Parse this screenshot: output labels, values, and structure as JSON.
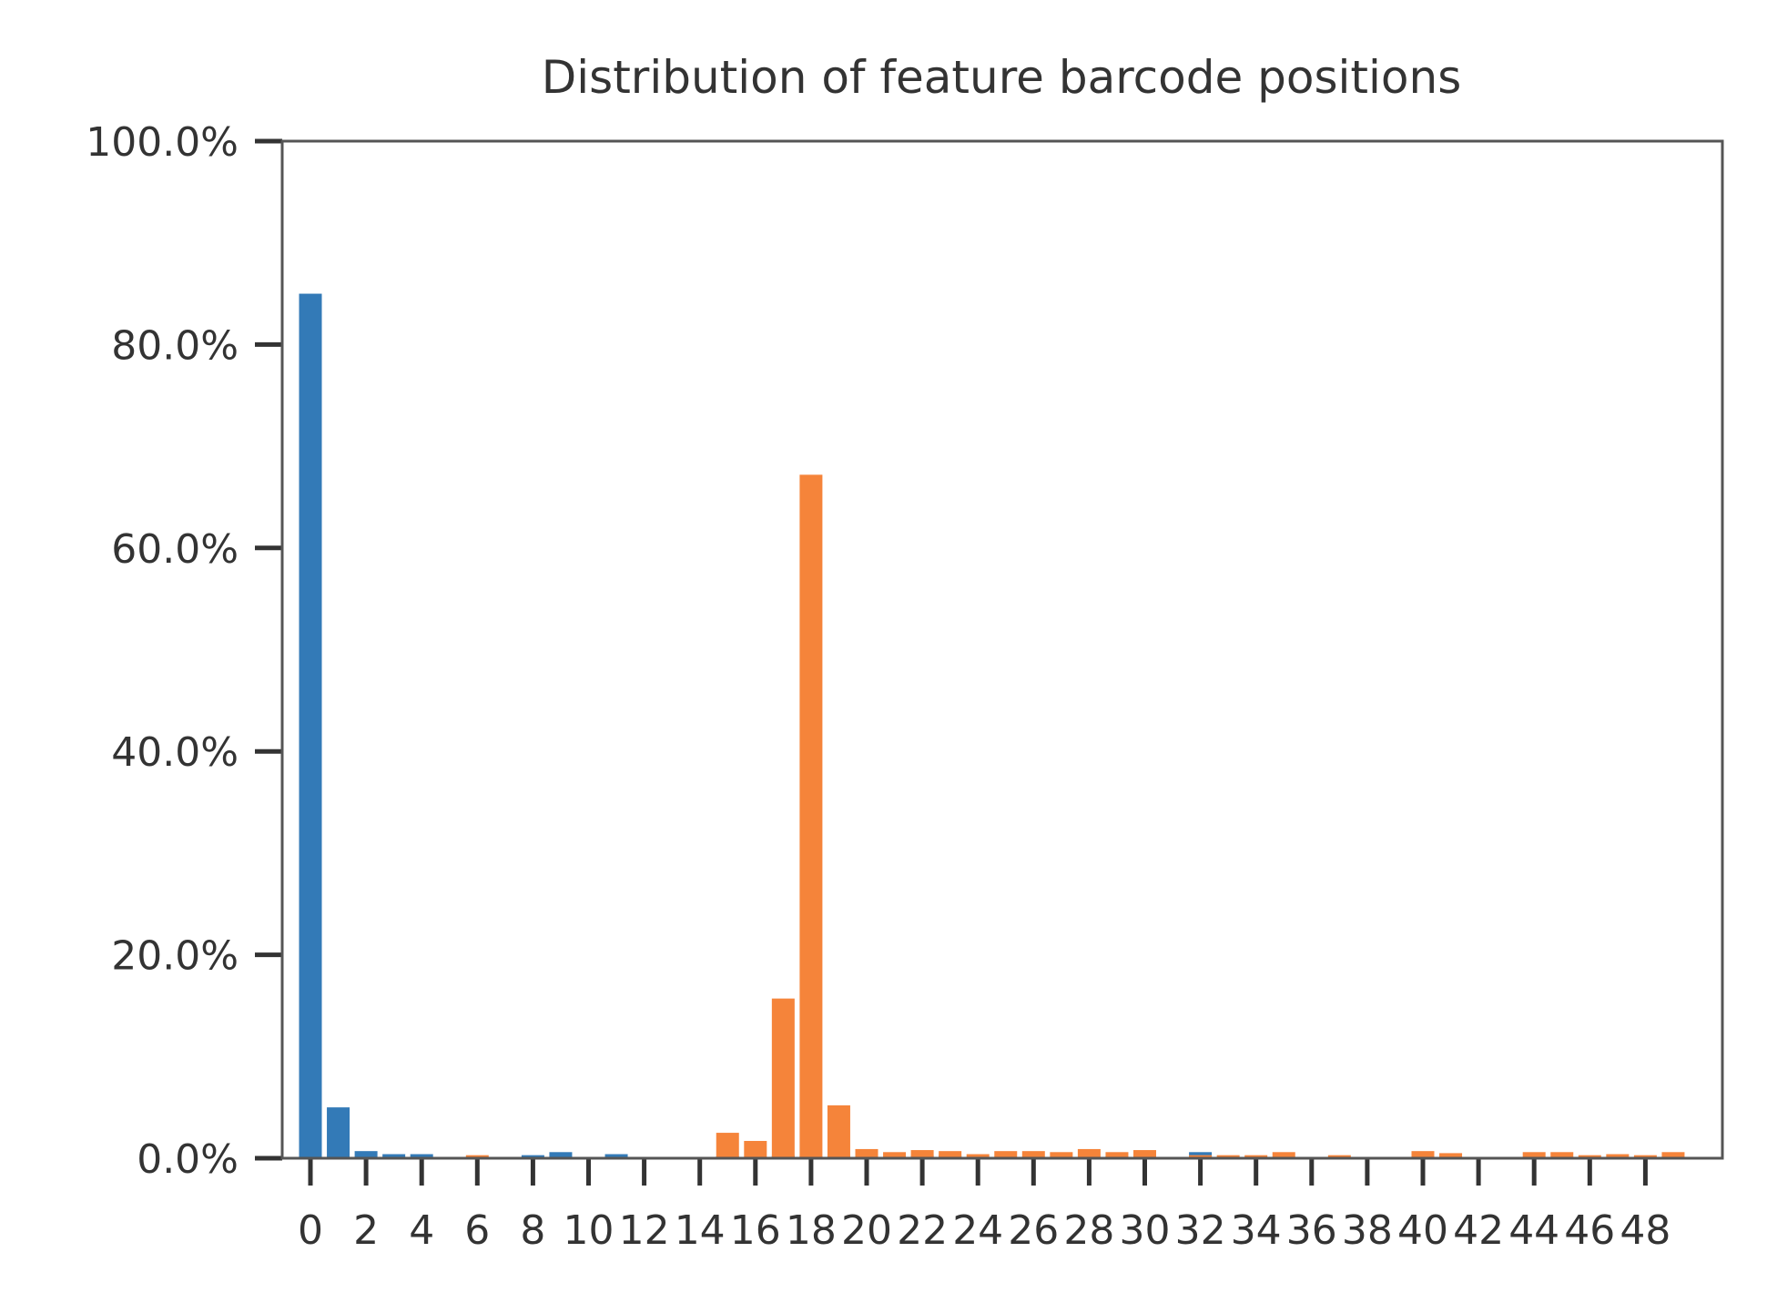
{
  "chart_data": {
    "type": "bar",
    "title": "Distribution of feature barcode positions",
    "xlabel": "",
    "ylabel": "",
    "ylim": [
      0,
      100
    ],
    "y_ticks": [
      0,
      20,
      40,
      60,
      80,
      100
    ],
    "y_tick_labels": [
      "0.0%",
      "20.0%",
      "40.0%",
      "60.0%",
      "80.0%",
      "100.0%"
    ],
    "x_ticks": [
      0,
      2,
      4,
      6,
      8,
      10,
      12,
      14,
      16,
      18,
      20,
      22,
      24,
      26,
      28,
      30,
      32,
      34,
      36,
      38,
      40,
      42,
      44,
      46,
      48
    ],
    "x_tick_labels": [
      "0",
      "2",
      "4",
      "6",
      "8",
      "10",
      "12",
      "14",
      "16",
      "18",
      "20",
      "22",
      "24",
      "26",
      "28",
      "30",
      "32",
      "34",
      "36",
      "38",
      "40",
      "42",
      "44",
      "46",
      "48"
    ],
    "grid": false,
    "legend": "none",
    "x": [
      0,
      1,
      2,
      3,
      4,
      5,
      6,
      7,
      8,
      9,
      10,
      11,
      12,
      13,
      14,
      15,
      16,
      17,
      18,
      19,
      20,
      21,
      22,
      23,
      24,
      25,
      26,
      27,
      28,
      29,
      30,
      31,
      32,
      33,
      34,
      35,
      36,
      37,
      38,
      39,
      40,
      41,
      42,
      43,
      44,
      45,
      46,
      47,
      48,
      49
    ],
    "series": [
      {
        "color": "#337ab7",
        "values": [
          85.0,
          5.0,
          0.7,
          0.4,
          0.4,
          0.1,
          0.1,
          0.1,
          0.3,
          0.6,
          0.1,
          0.4,
          0.1,
          0.1,
          0.1,
          0.2,
          0.1,
          0.3,
          0.2,
          0.2,
          0.1,
          0.1,
          0.3,
          0.3,
          0.1,
          0.1,
          0.1,
          0.1,
          0.1,
          0.2,
          0.1,
          0.1,
          0.6,
          0.1,
          0.1,
          0.1,
          0.1,
          0.1,
          0.1,
          0.1,
          0.1,
          0.1,
          0.1,
          0.1,
          0.1,
          0.1,
          0.1,
          0.1,
          0.1,
          0.1
        ]
      },
      {
        "color": "#f5843a",
        "values": [
          0.1,
          0.1,
          0.1,
          0.1,
          0.1,
          0.1,
          0.3,
          0.1,
          0.1,
          0.1,
          0.1,
          0.1,
          0.1,
          0.1,
          0.1,
          2.5,
          1.7,
          15.7,
          67.2,
          5.2,
          0.9,
          0.6,
          0.8,
          0.7,
          0.4,
          0.7,
          0.7,
          0.6,
          0.9,
          0.6,
          0.8,
          0.1,
          0.3,
          0.3,
          0.3,
          0.6,
          0.1,
          0.3,
          0.1,
          0.1,
          0.7,
          0.5,
          0.1,
          0.1,
          0.6,
          0.6,
          0.3,
          0.4,
          0.3,
          0.6
        ]
      }
    ]
  }
}
